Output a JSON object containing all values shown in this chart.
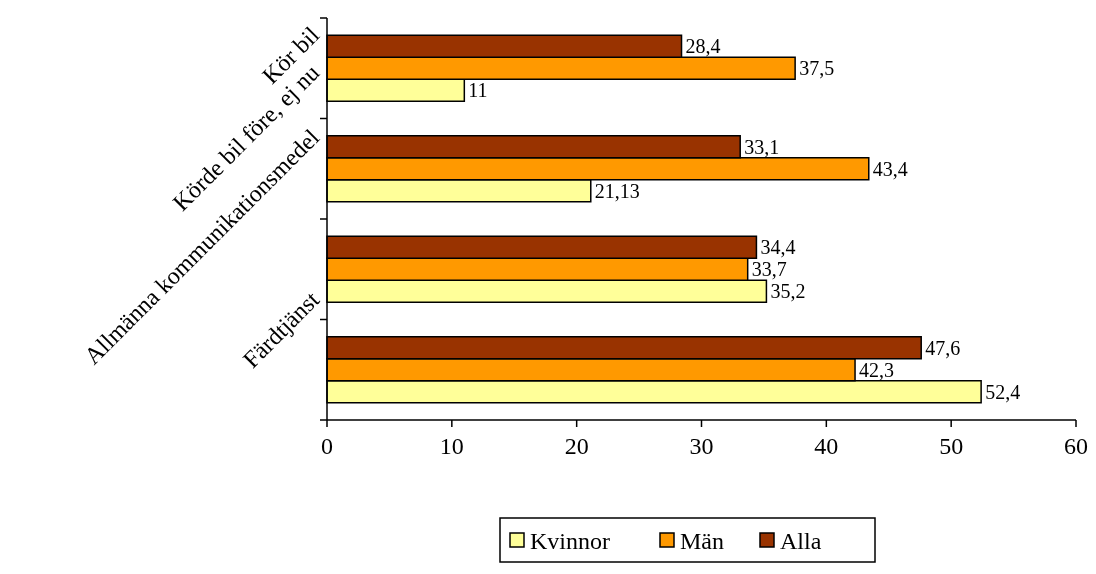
{
  "chart_data": {
    "type": "bar",
    "orientation": "horizontal",
    "categories": [
      "Kör bil",
      "Körde bil före, ej nu",
      "Allmänna kommunikationsmedel",
      "Färdtjänst"
    ],
    "series": [
      {
        "name": "Kvinnor",
        "color": "#ffff99",
        "values": [
          11,
          21.13,
          35.2,
          52.4
        ],
        "value_labels": [
          "11",
          "21,13",
          "35,2",
          "52,4"
        ]
      },
      {
        "name": "Män",
        "color": "#ff9900",
        "values": [
          37.5,
          43.4,
          33.7,
          42.3
        ],
        "value_labels": [
          "37,5",
          "43,4",
          "33,7",
          "42,3"
        ]
      },
      {
        "name": "Alla",
        "color": "#993300",
        "values": [
          28.4,
          33.1,
          34.4,
          47.6
        ],
        "value_labels": [
          "28,4",
          "33,1",
          "34,4",
          "47,6"
        ]
      }
    ],
    "xlim": [
      0,
      60
    ],
    "xticks": [
      0,
      10,
      20,
      30,
      40,
      50,
      60
    ],
    "grid": false,
    "legend": "bottom"
  }
}
